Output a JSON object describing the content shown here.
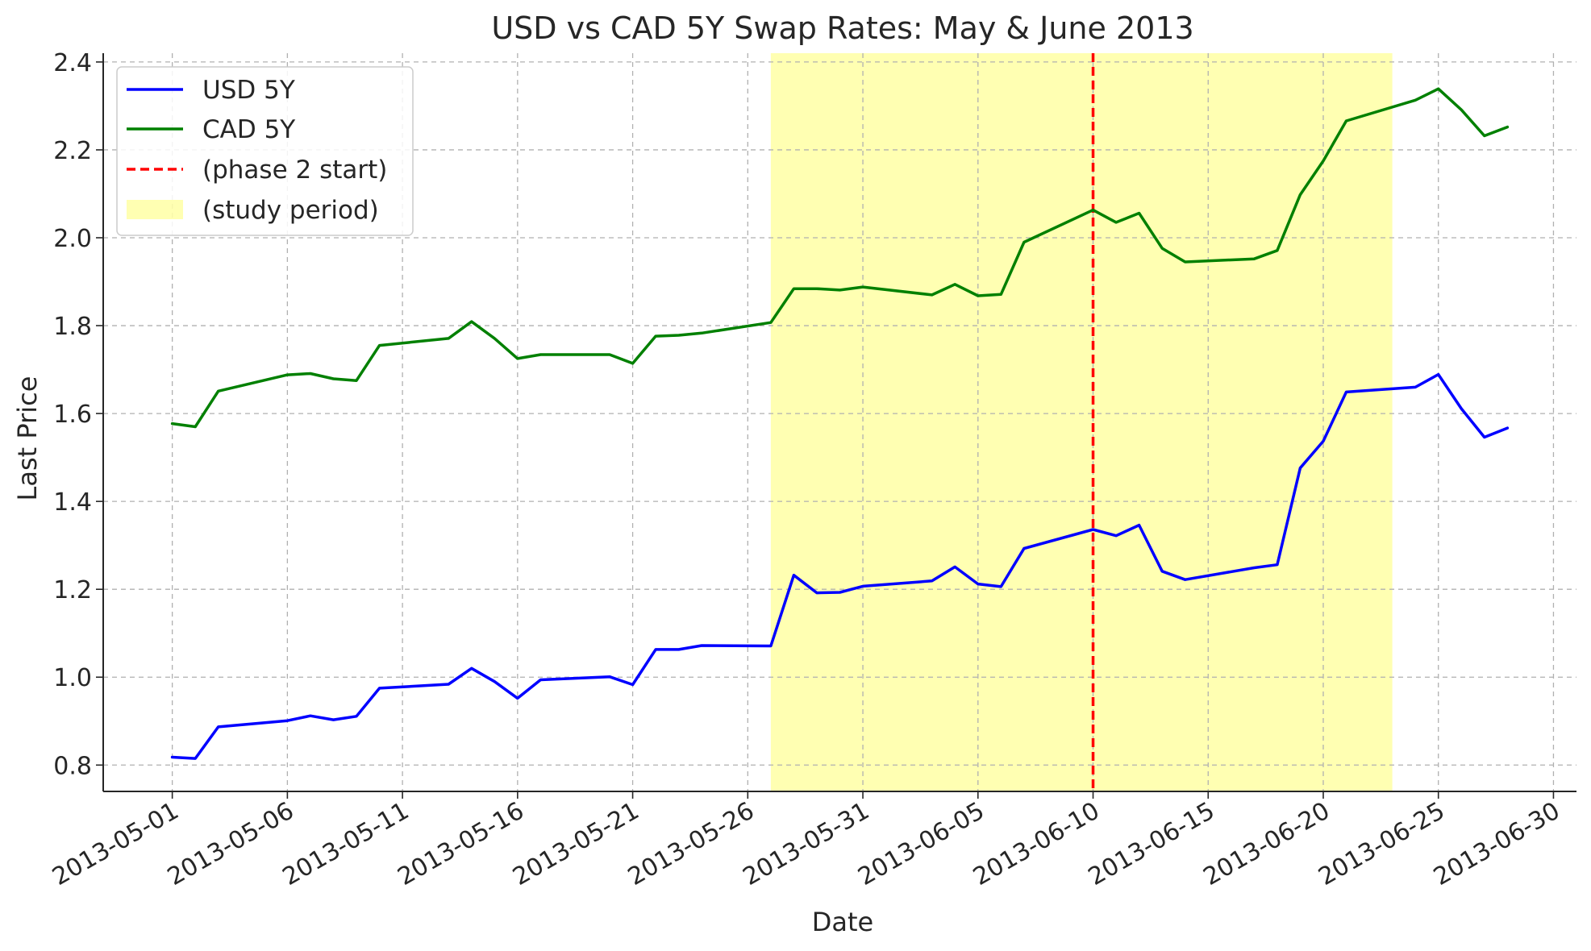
{
  "chart_data": {
    "type": "line",
    "title": "USD vs CAD 5Y Swap Rates: May & June 2013",
    "xlabel": "Date",
    "ylabel": "Last Price",
    "xlim": [
      "2013-04-28",
      "2013-07-01"
    ],
    "ylim": [
      0.74,
      2.42
    ],
    "x_ticks": [
      "2013-05-01",
      "2013-05-06",
      "2013-05-11",
      "2013-05-16",
      "2013-05-21",
      "2013-05-26",
      "2013-05-31",
      "2013-06-05",
      "2013-06-10",
      "2013-06-15",
      "2013-06-20",
      "2013-06-25",
      "2013-06-30"
    ],
    "y_ticks": [
      0.8,
      1.0,
      1.2,
      1.4,
      1.6,
      1.8,
      2.0,
      2.2,
      2.4
    ],
    "grid": true,
    "legend_position": "top-left",
    "series": [
      {
        "name": "USD 5Y",
        "color": "#0000ff",
        "points": [
          [
            "2013-05-01",
            0.818
          ],
          [
            "2013-05-02",
            0.815
          ],
          [
            "2013-05-03",
            0.887
          ],
          [
            "2013-05-06",
            0.901
          ],
          [
            "2013-05-07",
            0.912
          ],
          [
            "2013-05-08",
            0.903
          ],
          [
            "2013-05-09",
            0.911
          ],
          [
            "2013-05-10",
            0.975
          ],
          [
            "2013-05-13",
            0.984
          ],
          [
            "2013-05-14",
            1.02
          ],
          [
            "2013-05-15",
            0.99
          ],
          [
            "2013-05-16",
            0.952
          ],
          [
            "2013-05-17",
            0.994
          ],
          [
            "2013-05-20",
            1.001
          ],
          [
            "2013-05-21",
            0.983
          ],
          [
            "2013-05-22",
            1.063
          ],
          [
            "2013-05-23",
            1.063
          ],
          [
            "2013-05-24",
            1.072
          ],
          [
            "2013-05-27",
            1.071
          ],
          [
            "2013-05-28",
            1.232
          ],
          [
            "2013-05-29",
            1.192
          ],
          [
            "2013-05-30",
            1.193
          ],
          [
            "2013-05-31",
            1.207
          ],
          [
            "2013-06-03",
            1.219
          ],
          [
            "2013-06-04",
            1.251
          ],
          [
            "2013-06-05",
            1.212
          ],
          [
            "2013-06-06",
            1.206
          ],
          [
            "2013-06-07",
            1.293
          ],
          [
            "2013-06-10",
            1.336
          ],
          [
            "2013-06-11",
            1.322
          ],
          [
            "2013-06-12",
            1.346
          ],
          [
            "2013-06-13",
            1.241
          ],
          [
            "2013-06-14",
            1.222
          ],
          [
            "2013-06-17",
            1.249
          ],
          [
            "2013-06-18",
            1.256
          ],
          [
            "2013-06-19",
            1.476
          ],
          [
            "2013-06-20",
            1.537
          ],
          [
            "2013-06-21",
            1.649
          ],
          [
            "2013-06-24",
            1.66
          ],
          [
            "2013-06-25",
            1.689
          ],
          [
            "2013-06-26",
            1.611
          ],
          [
            "2013-06-27",
            1.546
          ],
          [
            "2013-06-28",
            1.567
          ]
        ]
      },
      {
        "name": "CAD 5Y",
        "color": "#008000",
        "points": [
          [
            "2013-05-01",
            1.577
          ],
          [
            "2013-05-02",
            1.57
          ],
          [
            "2013-05-03",
            1.651
          ],
          [
            "2013-05-06",
            1.688
          ],
          [
            "2013-05-07",
            1.691
          ],
          [
            "2013-05-08",
            1.679
          ],
          [
            "2013-05-09",
            1.675
          ],
          [
            "2013-05-10",
            1.755
          ],
          [
            "2013-05-13",
            1.771
          ],
          [
            "2013-05-14",
            1.809
          ],
          [
            "2013-05-15",
            1.771
          ],
          [
            "2013-05-16",
            1.725
          ],
          [
            "2013-05-17",
            1.734
          ],
          [
            "2013-05-20",
            1.734
          ],
          [
            "2013-05-21",
            1.714
          ],
          [
            "2013-05-22",
            1.776
          ],
          [
            "2013-05-23",
            1.778
          ],
          [
            "2013-05-24",
            1.783
          ],
          [
            "2013-05-27",
            1.807
          ],
          [
            "2013-05-28",
            1.884
          ],
          [
            "2013-05-29",
            1.884
          ],
          [
            "2013-05-30",
            1.881
          ],
          [
            "2013-05-31",
            1.888
          ],
          [
            "2013-06-03",
            1.87
          ],
          [
            "2013-06-04",
            1.894
          ],
          [
            "2013-06-05",
            1.868
          ],
          [
            "2013-06-06",
            1.871
          ],
          [
            "2013-06-07",
            1.99
          ],
          [
            "2013-06-10",
            2.063
          ],
          [
            "2013-06-11",
            2.035
          ],
          [
            "2013-06-12",
            2.056
          ],
          [
            "2013-06-13",
            1.976
          ],
          [
            "2013-06-14",
            1.945
          ],
          [
            "2013-06-17",
            1.952
          ],
          [
            "2013-06-18",
            1.971
          ],
          [
            "2013-06-19",
            2.098
          ],
          [
            "2013-06-20",
            2.175
          ],
          [
            "2013-06-21",
            2.266
          ],
          [
            "2013-06-24",
            2.313
          ],
          [
            "2013-06-25",
            2.339
          ],
          [
            "2013-06-26",
            2.291
          ],
          [
            "2013-06-27",
            2.232
          ],
          [
            "2013-06-28",
            2.252
          ]
        ]
      }
    ],
    "annotations": {
      "phase_line": {
        "label": "(phase 2 start)",
        "date": "2013-06-10",
        "color": "#ff0000"
      },
      "study_period": {
        "label": "(study period)",
        "start": "2013-05-27",
        "end": "2013-06-23",
        "color": "#ffff00"
      }
    }
  }
}
